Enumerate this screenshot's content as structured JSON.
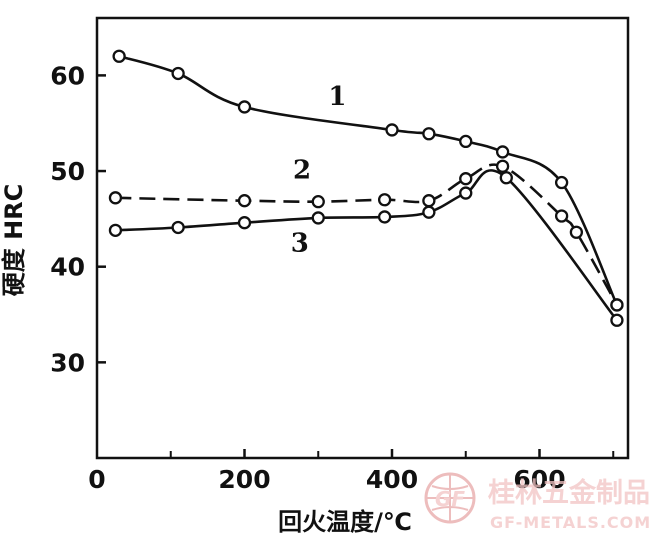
{
  "chart_data": {
    "type": "line",
    "title": "",
    "xlabel": "回火温度/℃",
    "ylabel": "硬度 HRC",
    "xlim": [
      0,
      720
    ],
    "ylim": [
      20,
      66
    ],
    "x_ticks": [
      0,
      200,
      400,
      600
    ],
    "y_ticks": [
      30,
      40,
      50,
      60
    ],
    "x_minor_ticks": [
      100,
      300,
      500,
      700
    ],
    "grid": false,
    "legend": "none",
    "series": [
      {
        "name": "1",
        "line_style": "solid",
        "points": [
          [
            30,
            62
          ],
          [
            110,
            60.2
          ],
          [
            200,
            56.7
          ],
          [
            400,
            54.3
          ],
          [
            450,
            53.9
          ],
          [
            500,
            53.1
          ],
          [
            550,
            52
          ],
          [
            630,
            48.8
          ],
          [
            705,
            36
          ]
        ]
      },
      {
        "name": "2",
        "line_style": "dashed",
        "points": [
          [
            25,
            47.2
          ],
          [
            200,
            46.9
          ],
          [
            300,
            46.8
          ],
          [
            390,
            47
          ],
          [
            450,
            46.9
          ],
          [
            500,
            49.2
          ],
          [
            550,
            50.5
          ],
          [
            630,
            45.3
          ],
          [
            650,
            43.6
          ],
          [
            705,
            36
          ]
        ]
      },
      {
        "name": "3",
        "line_style": "solid",
        "points": [
          [
            25,
            43.8
          ],
          [
            110,
            44.1
          ],
          [
            200,
            44.6
          ],
          [
            300,
            45.1
          ],
          [
            390,
            45.2
          ],
          [
            450,
            45.7
          ],
          [
            500,
            47.7
          ],
          [
            555,
            49.3
          ],
          [
            705,
            34.4
          ]
        ]
      }
    ]
  },
  "watermark": {
    "text": "桂林五金制品",
    "subtext": "GF-METALS.COM",
    "logo_text": "GF",
    "color": "#e8a8a8"
  }
}
